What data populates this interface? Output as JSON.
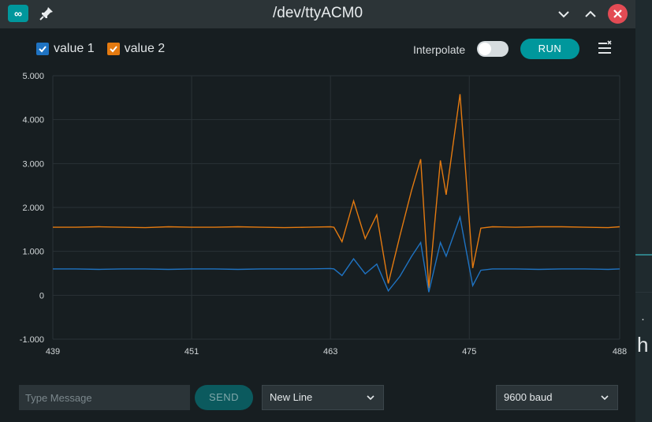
{
  "window": {
    "title": "/dev/ttyACM0",
    "app_icon_glyph": "∞"
  },
  "legend": [
    {
      "label": "value 1",
      "color": "#1f73c2",
      "checked": true
    },
    {
      "label": "value 2",
      "color": "#e47a10",
      "checked": true
    }
  ],
  "controls": {
    "interpolate_label": "Interpolate",
    "interpolate_on": false,
    "run_label": "RUN"
  },
  "chart_data": {
    "type": "line",
    "xlim": [
      439,
      488
    ],
    "ylim": [
      -1,
      5
    ],
    "x_ticks": [
      "439",
      "451",
      "463",
      "475",
      "488"
    ],
    "y_ticks": [
      "5.000",
      "4.000",
      "3.000",
      "2.000",
      "1.000",
      "0",
      "-1.000"
    ],
    "grid": true,
    "series": [
      {
        "name": "value 1",
        "color": "#1f73c2",
        "x": [
          439,
          441,
          443,
          445,
          447,
          449,
          451,
          453,
          455,
          457,
          459,
          461,
          463,
          463.3,
          464,
          465,
          466,
          467,
          468,
          469,
          470,
          470.8,
          471.5,
          472.5,
          473,
          474.2,
          475.3,
          476,
          477,
          479,
          481,
          483,
          485,
          487,
          488
        ],
        "y": [
          0.6,
          0.6,
          0.59,
          0.6,
          0.6,
          0.59,
          0.6,
          0.6,
          0.59,
          0.6,
          0.6,
          0.6,
          0.61,
          0.6,
          0.45,
          0.83,
          0.49,
          0.71,
          0.1,
          0.43,
          0.88,
          1.2,
          0.07,
          1.2,
          0.89,
          1.78,
          0.22,
          0.57,
          0.6,
          0.6,
          0.59,
          0.6,
          0.6,
          0.59,
          0.6
        ]
      },
      {
        "name": "value 2",
        "color": "#e47a10",
        "x": [
          439,
          441,
          443,
          445,
          447,
          449,
          451,
          453,
          455,
          457,
          459,
          461,
          463,
          463.3,
          464,
          465,
          466,
          467,
          468,
          469,
          470,
          470.8,
          471.5,
          472.5,
          473,
          474.2,
          475.3,
          476,
          477,
          479,
          481,
          483,
          485,
          487,
          488
        ],
        "y": [
          1.55,
          1.55,
          1.56,
          1.55,
          1.54,
          1.56,
          1.55,
          1.55,
          1.56,
          1.55,
          1.54,
          1.55,
          1.56,
          1.55,
          1.22,
          2.15,
          1.29,
          1.83,
          0.27,
          1.35,
          2.38,
          3.1,
          0.16,
          3.07,
          2.29,
          4.58,
          0.62,
          1.53,
          1.56,
          1.55,
          1.56,
          1.56,
          1.55,
          1.54,
          1.56
        ]
      }
    ]
  },
  "footer": {
    "message_placeholder": "Type Message",
    "send_label": "SEND",
    "line_ending": "New Line",
    "baud": "9600 baud"
  },
  "background": {
    "dot": "·",
    "letter": "h"
  }
}
